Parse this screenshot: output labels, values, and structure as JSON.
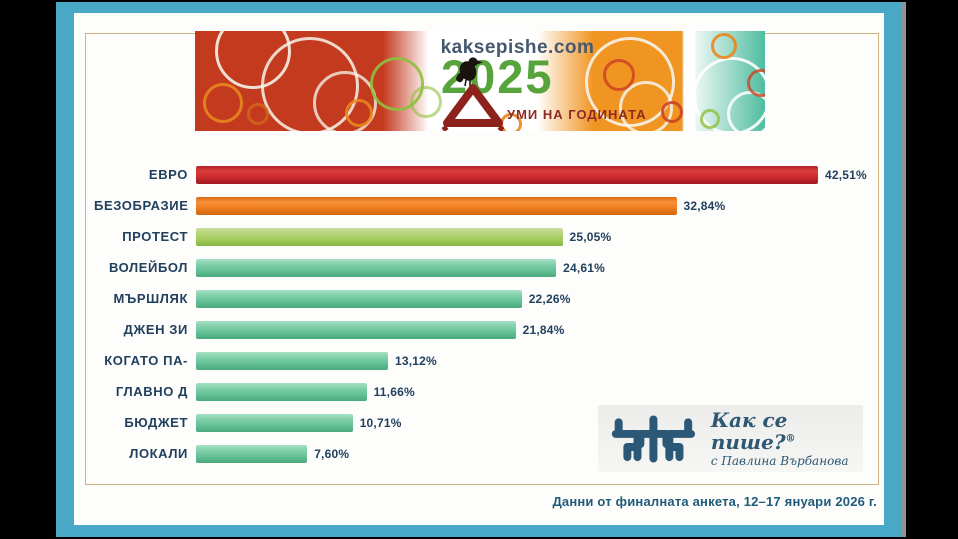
{
  "banner": {
    "site": "kaksepishe.com",
    "year": "2025",
    "campaign": "УМИ НА ГОДИНАТА"
  },
  "chart_data": {
    "type": "bar",
    "orientation": "horizontal",
    "title": "Думи на годината 2025",
    "categories": [
      "ЕВРО",
      "БЕЗОБРАЗИЕ",
      "ПРОТЕСТ",
      "ВОЛЕЙБОЛ",
      "МЪРШЛЯК",
      "ДЖЕН ЗИ",
      "КОГАТО ПА-",
      "ГЛАВНО Д",
      "БЮДЖЕТ",
      "ЛОКАЛИ"
    ],
    "values": [
      42.51,
      32.84,
      25.05,
      24.61,
      22.26,
      21.84,
      13.12,
      11.66,
      10.71,
      7.6
    ],
    "value_labels": [
      "42,51%",
      "32,84%",
      "25,05%",
      "24,61%",
      "22,26%",
      "21,84%",
      "13,12%",
      "11,66%",
      "10,71%",
      "7,60%"
    ],
    "color_keys": [
      "red",
      "orange",
      "lime",
      "green",
      "green",
      "green",
      "green",
      "green",
      "green",
      "green"
    ],
    "bar_colors": [
      "#ce2b2f",
      "#ee7d1e",
      "#a3cb5c",
      "#64c096",
      "#64c096",
      "#64c096",
      "#64c096",
      "#64c096",
      "#64c096",
      "#64c096"
    ],
    "xlim": [
      0,
      44
    ],
    "grid": false,
    "legend": false
  },
  "footer": {
    "logo_title": "Как се пише?",
    "logo_reg": "®",
    "logo_subtitle": "с Павлина Върбанова",
    "note": "Данни от финалната анкета, 12–17 януари 2026 г."
  },
  "colors": {
    "frame_teal": "#4aa8c7",
    "card_white": "#fdfdfb",
    "tan_border": "#d2b183",
    "label_navy": "#21405e",
    "footer_blue": "#1e5a7a",
    "logo_slate": "#2b5876",
    "banner_red": "#c43a1e",
    "banner_orange": "#f09422",
    "banner_teal": "#4fbda0",
    "year_green": "#57a33c",
    "campaign_red": "#8e2a24"
  }
}
